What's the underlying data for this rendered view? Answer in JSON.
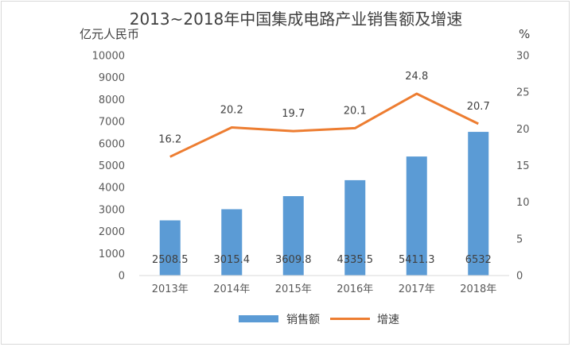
{
  "chart_data": {
    "type": "bar",
    "title": "2013~2018年中国集成电路产业销售额及增速",
    "y_left_unit": "亿元人民币",
    "y_right_unit": "%",
    "categories": [
      "2013年",
      "2014年",
      "2015年",
      "2016年",
      "2017年",
      "2018年"
    ],
    "series": [
      {
        "name": "销售额",
        "type": "bar",
        "axis": "left",
        "color": "#5b9bd5",
        "values": [
          2508.5,
          3015.4,
          3609.8,
          4335.5,
          5411.3,
          6532
        ],
        "labels": [
          "2508.5",
          "3015.4",
          "3609.8",
          "4335.5",
          "5411.3",
          "6532"
        ]
      },
      {
        "name": "增速",
        "type": "line",
        "axis": "right",
        "color": "#ed7d31",
        "values": [
          16.2,
          20.2,
          19.7,
          20.1,
          24.8,
          20.7
        ],
        "labels": [
          "16.2",
          "20.2",
          "19.7",
          "20.1",
          "24.8",
          "20.7"
        ]
      }
    ],
    "y_left": {
      "min": 0,
      "max": 10000,
      "ticks": [
        "0",
        "1000",
        "2000",
        "3000",
        "4000",
        "5000",
        "6000",
        "7000",
        "8000",
        "9000",
        "10000"
      ]
    },
    "y_right": {
      "min": 0,
      "max": 30,
      "ticks": [
        "0",
        "5",
        "10",
        "15",
        "20",
        "25",
        "30"
      ]
    },
    "grid": false,
    "legend": "bottom"
  }
}
